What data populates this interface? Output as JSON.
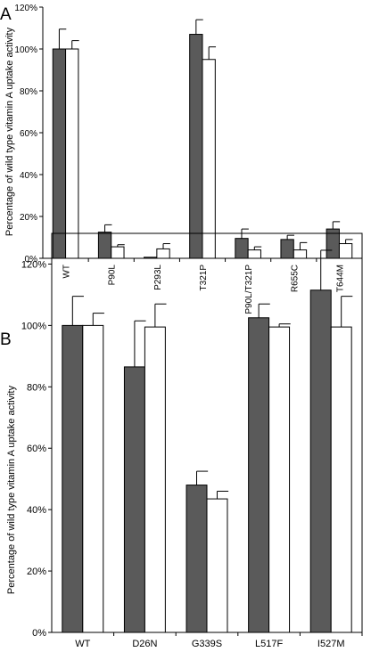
{
  "chart_data": [
    {
      "panel_label": "A",
      "type": "bar",
      "ylabel": "Percentage of wild type vitamin A uptake activity",
      "ylim": [
        0,
        120
      ],
      "yticks": [
        "0%",
        "20%",
        "40%",
        "60%",
        "80%",
        "100%",
        "120%"
      ],
      "grid": false,
      "categories": [
        "WT",
        "P90L",
        "P293L",
        "T321P",
        "P90L/T321P",
        "R655C",
        "T644M"
      ],
      "series": [
        {
          "color": "#5a5a5a",
          "values": [
            100,
            12.5,
            0.5,
            107,
            9.5,
            9,
            14
          ],
          "errors": [
            9.5,
            3.5,
            0,
            7,
            4.5,
            2,
            3.5
          ]
        },
        {
          "color": "#ffffff",
          "values": [
            100,
            5.5,
            4.5,
            95,
            4,
            4,
            7
          ],
          "errors": [
            4,
            1,
            2.5,
            6,
            1.5,
            3.5,
            2
          ]
        }
      ]
    },
    {
      "panel_label": "B",
      "type": "bar",
      "ylabel": "Percentage of wild type vitamin A uptake activity",
      "ylim": [
        0,
        130
      ],
      "yticks": [
        "0%",
        "20%",
        "40%",
        "60%",
        "80%",
        "100%",
        "120%"
      ],
      "grid": false,
      "categories": [
        "WT",
        "D26N",
        "G339S",
        "L517F",
        "I527M"
      ],
      "series": [
        {
          "color": "#5a5a5a",
          "values": [
            100,
            86.5,
            48,
            102.5,
            111.5
          ],
          "errors": [
            9.5,
            15,
            4.5,
            4.5,
            13
          ]
        },
        {
          "color": "#ffffff",
          "values": [
            100,
            99.5,
            43.5,
            99.5,
            99.5
          ],
          "errors": [
            4,
            7.5,
            2.5,
            1,
            10
          ]
        }
      ]
    }
  ]
}
